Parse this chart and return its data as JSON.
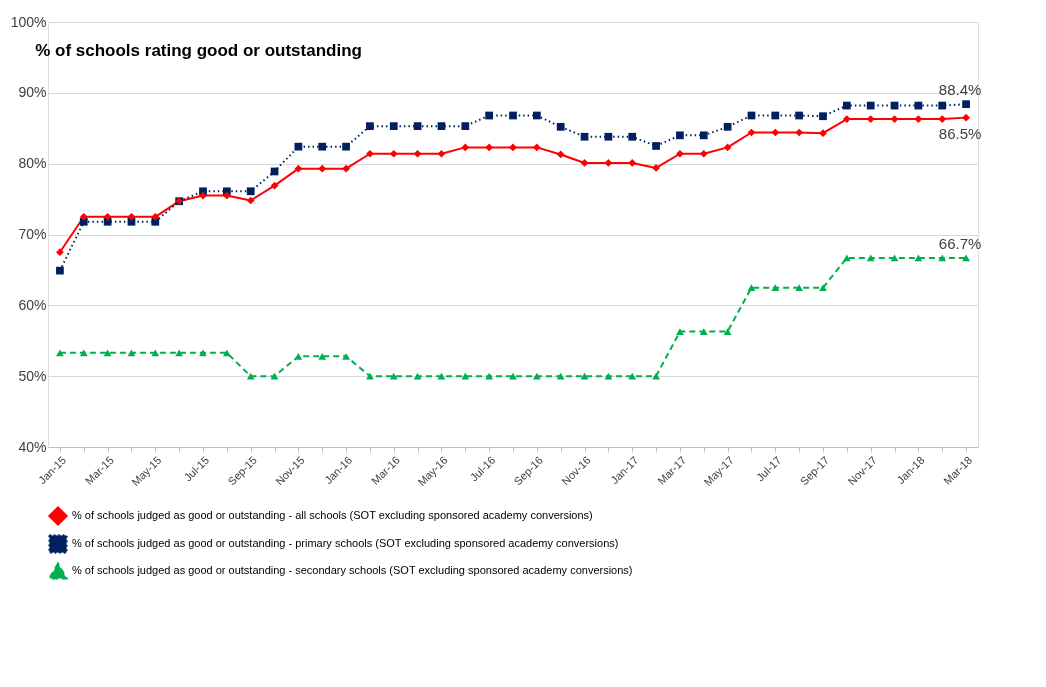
{
  "chart_data": {
    "type": "line",
    "title": "% of schools rating good or outstanding",
    "categories": [
      "Jan-15",
      null,
      "Mar-15",
      null,
      "May-15",
      null,
      "Jul-15",
      null,
      "Sep-15",
      null,
      "Nov-15",
      null,
      "Jan-16",
      null,
      "Mar-16",
      null,
      "May-16",
      null,
      "Jul-16",
      null,
      "Sep-16",
      null,
      "Nov-16",
      null,
      "Jan-17",
      null,
      "Mar-17",
      null,
      "May-17",
      null,
      "Jul-17",
      null,
      "Sep-17",
      null,
      "Nov-17",
      null,
      "Jan-18",
      null,
      "Mar-18"
    ],
    "series": [
      {
        "name": "% of schools judged as good or outstanding - all schools (SOT excluding sponsored academy conversions)",
        "color": "#ff0000",
        "marker": "diamond",
        "line_style": "solid",
        "values": [
          67.5,
          72.5,
          72.5,
          72.5,
          72.5,
          74.7,
          75.5,
          75.5,
          74.8,
          76.9,
          79.3,
          79.3,
          79.3,
          81.4,
          81.4,
          81.4,
          81.4,
          82.3,
          82.3,
          82.3,
          82.3,
          81.3,
          80.1,
          80.1,
          80.1,
          79.4,
          81.4,
          81.4,
          82.3,
          84.4,
          84.4,
          84.4,
          84.3,
          86.3,
          86.3,
          86.3,
          86.3,
          86.3,
          86.5
        ],
        "value_labels": [
          null,
          null,
          null,
          null,
          null,
          null,
          null,
          null,
          null,
          null,
          null,
          null,
          null,
          null,
          null,
          null,
          null,
          null,
          null,
          null,
          null,
          null,
          null,
          null,
          null,
          null,
          null,
          null,
          null,
          null,
          null,
          null,
          null,
          null,
          null,
          null,
          null,
          null,
          "86.5%"
        ]
      },
      {
        "name": "% of schools judged as good or outstanding - primary schools  (SOT excluding sponsored academy conversions)",
        "color": "#002060",
        "marker": "square",
        "line_style": "dotted",
        "values": [
          64.9,
          71.8,
          71.8,
          71.8,
          71.8,
          74.7,
          76.1,
          76.1,
          76.1,
          78.9,
          82.4,
          82.4,
          82.4,
          85.3,
          85.3,
          85.3,
          85.3,
          85.3,
          86.8,
          86.8,
          86.8,
          85.2,
          83.8,
          83.8,
          83.8,
          82.5,
          84.0,
          84.0,
          85.2,
          86.8,
          86.8,
          86.8,
          86.7,
          88.2,
          88.2,
          88.2,
          88.2,
          88.2,
          88.4
        ],
        "value_labels": [
          null,
          null,
          null,
          null,
          null,
          null,
          null,
          null,
          null,
          null,
          null,
          null,
          null,
          null,
          null,
          null,
          null,
          null,
          null,
          null,
          null,
          null,
          null,
          null,
          null,
          null,
          null,
          null,
          null,
          null,
          null,
          null,
          null,
          null,
          null,
          null,
          null,
          null,
          "88.4%"
        ]
      },
      {
        "name": "% of schools judged as good or outstanding - secondary schools (SOT excluding sponsored academy conversions)",
        "color": "#00b050",
        "marker": "triangle",
        "line_style": "dashed",
        "values": [
          53.3,
          53.3,
          53.3,
          53.3,
          53.3,
          53.3,
          53.3,
          53.3,
          50.0,
          50.0,
          52.8,
          52.8,
          52.8,
          50.0,
          50.0,
          50.0,
          50.0,
          50.0,
          50.0,
          50.0,
          50.0,
          50.0,
          50.0,
          50.0,
          50.0,
          50.0,
          56.3,
          56.3,
          56.3,
          62.5,
          62.5,
          62.5,
          62.5,
          66.7,
          66.7,
          66.7,
          66.7,
          66.7,
          66.7
        ],
        "value_labels": [
          null,
          null,
          null,
          null,
          null,
          null,
          null,
          null,
          null,
          null,
          null,
          null,
          null,
          null,
          null,
          null,
          null,
          null,
          null,
          null,
          null,
          null,
          null,
          null,
          null,
          null,
          null,
          null,
          null,
          null,
          null,
          null,
          null,
          null,
          null,
          null,
          null,
          null,
          "66.7%"
        ]
      }
    ],
    "ylim": [
      40,
      100
    ],
    "yticks": [
      {
        "value": 40,
        "label": "40%"
      },
      {
        "value": 50,
        "label": "50%"
      },
      {
        "value": 60,
        "label": "60%"
      },
      {
        "value": 70,
        "label": "70%"
      },
      {
        "value": 80,
        "label": "80%"
      },
      {
        "value": 90,
        "label": "90%"
      },
      {
        "value": 100,
        "label": "100%"
      }
    ],
    "grid": "y",
    "legend": "bottom"
  }
}
